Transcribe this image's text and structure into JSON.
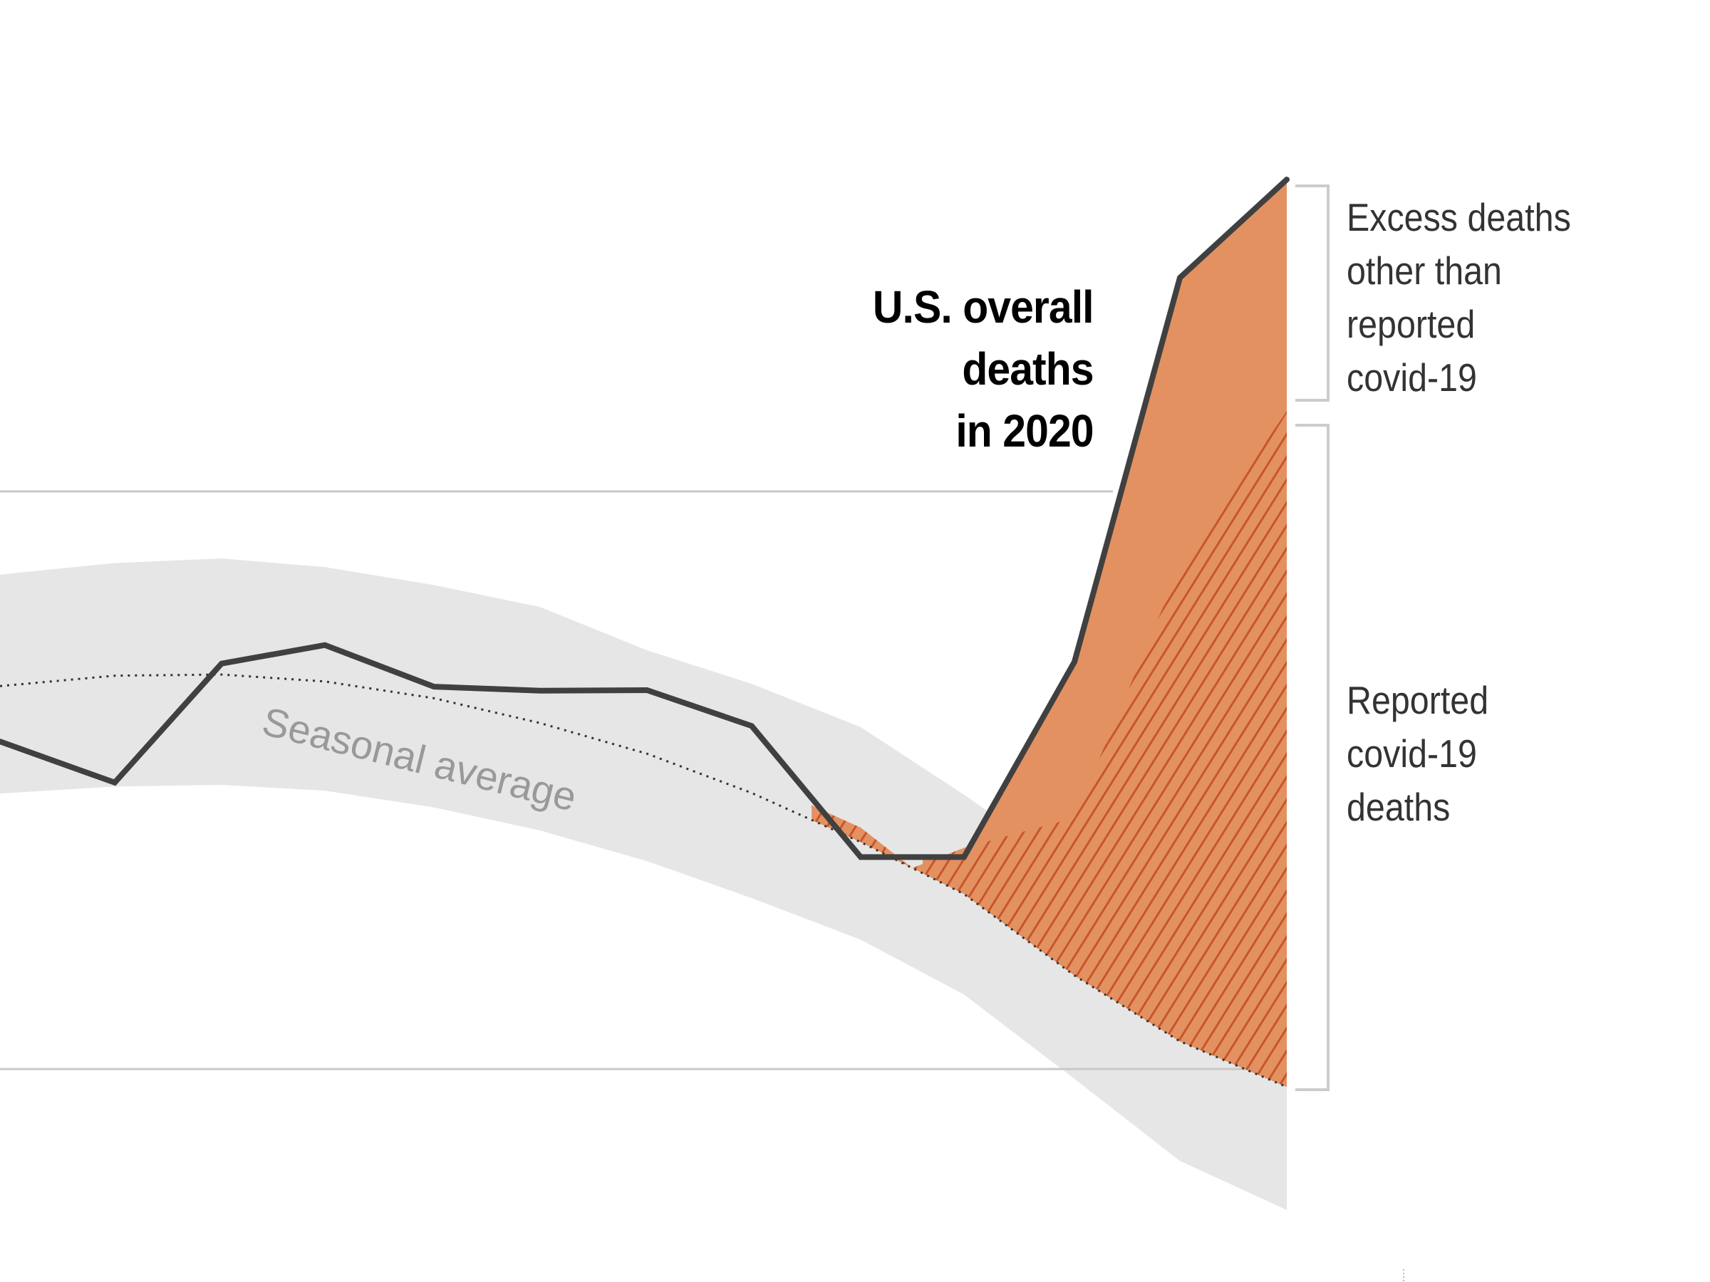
{
  "chart_data": {
    "type": "line",
    "title": "U.S. overall deaths in 2020",
    "xlabel": "",
    "ylabel": "",
    "y_units_note": "relative index: lower gridline = 0, upper gridline = 100 (no axis labels shown)",
    "ylim": [
      -25,
      185
    ],
    "gridlines": [
      0,
      100
    ],
    "x": [
      0,
      1,
      2,
      3,
      4,
      5,
      6,
      7,
      8,
      9,
      10,
      11,
      12
    ],
    "series": [
      {
        "name": "U.S. overall deaths in 2020",
        "style": "solid",
        "color": "#404040",
        "values": [
          56.7,
          49.6,
          70.2,
          73.4,
          66.2,
          65.5,
          65.6,
          59.4,
          36.7,
          36.7,
          70.5,
          137.0,
          154.0
        ]
      },
      {
        "name": "Seasonal average",
        "style": "dotted",
        "color": "#333333",
        "values": [
          66.3,
          68.1,
          68.3,
          67.1,
          64.2,
          59.9,
          54.6,
          47.8,
          39.3,
          30.3,
          16.2,
          4.8,
          -3.1
        ]
      },
      {
        "name": "Seasonal range upper",
        "style": "band",
        "color": "#e6e6e6",
        "values": [
          85.6,
          87.6,
          88.4,
          86.9,
          83.8,
          80.0,
          72.5,
          66.7,
          59.2,
          47.5,
          34.0,
          20.0,
          10.0
        ]
      },
      {
        "name": "Seasonal range lower",
        "style": "band",
        "color": "#e6e6e6",
        "values": [
          47.7,
          48.9,
          49.2,
          48.2,
          45.3,
          41.3,
          36.0,
          29.6,
          22.4,
          12.9,
          -1.7,
          -15.9,
          -24.4
        ]
      },
      {
        "name": "Reported covid-19 deaths (top boundary)",
        "style": "hatched",
        "color": "#c8552a",
        "x": [
          8.5,
          9,
          10,
          11,
          12
        ],
        "values": [
          36.7,
          38.3,
          43.5,
          86.9,
          113.9
        ]
      }
    ],
    "annotations": [
      {
        "text": "Seasonal average",
        "color": "#999999"
      },
      {
        "text": "Excess deaths\nother than\nreported\ncovid-19",
        "color": "#333333"
      },
      {
        "text": "Reported\ncovid-19\ndeaths",
        "color": "#333333"
      }
    ],
    "colors": {
      "excess_fill": "#e39161",
      "hatch": "#c8552a",
      "band": "#e6e6e6",
      "grid": "#c8c8c8",
      "bracket": "#cccccc"
    }
  },
  "labels": {
    "title": "U.S. overall\ndeaths\nin 2020",
    "seasonal": "Seasonal average",
    "excess": "Excess deaths\nother than\nreported\ncovid-19",
    "covid": "Reported\ncovid-19\ndeaths"
  }
}
